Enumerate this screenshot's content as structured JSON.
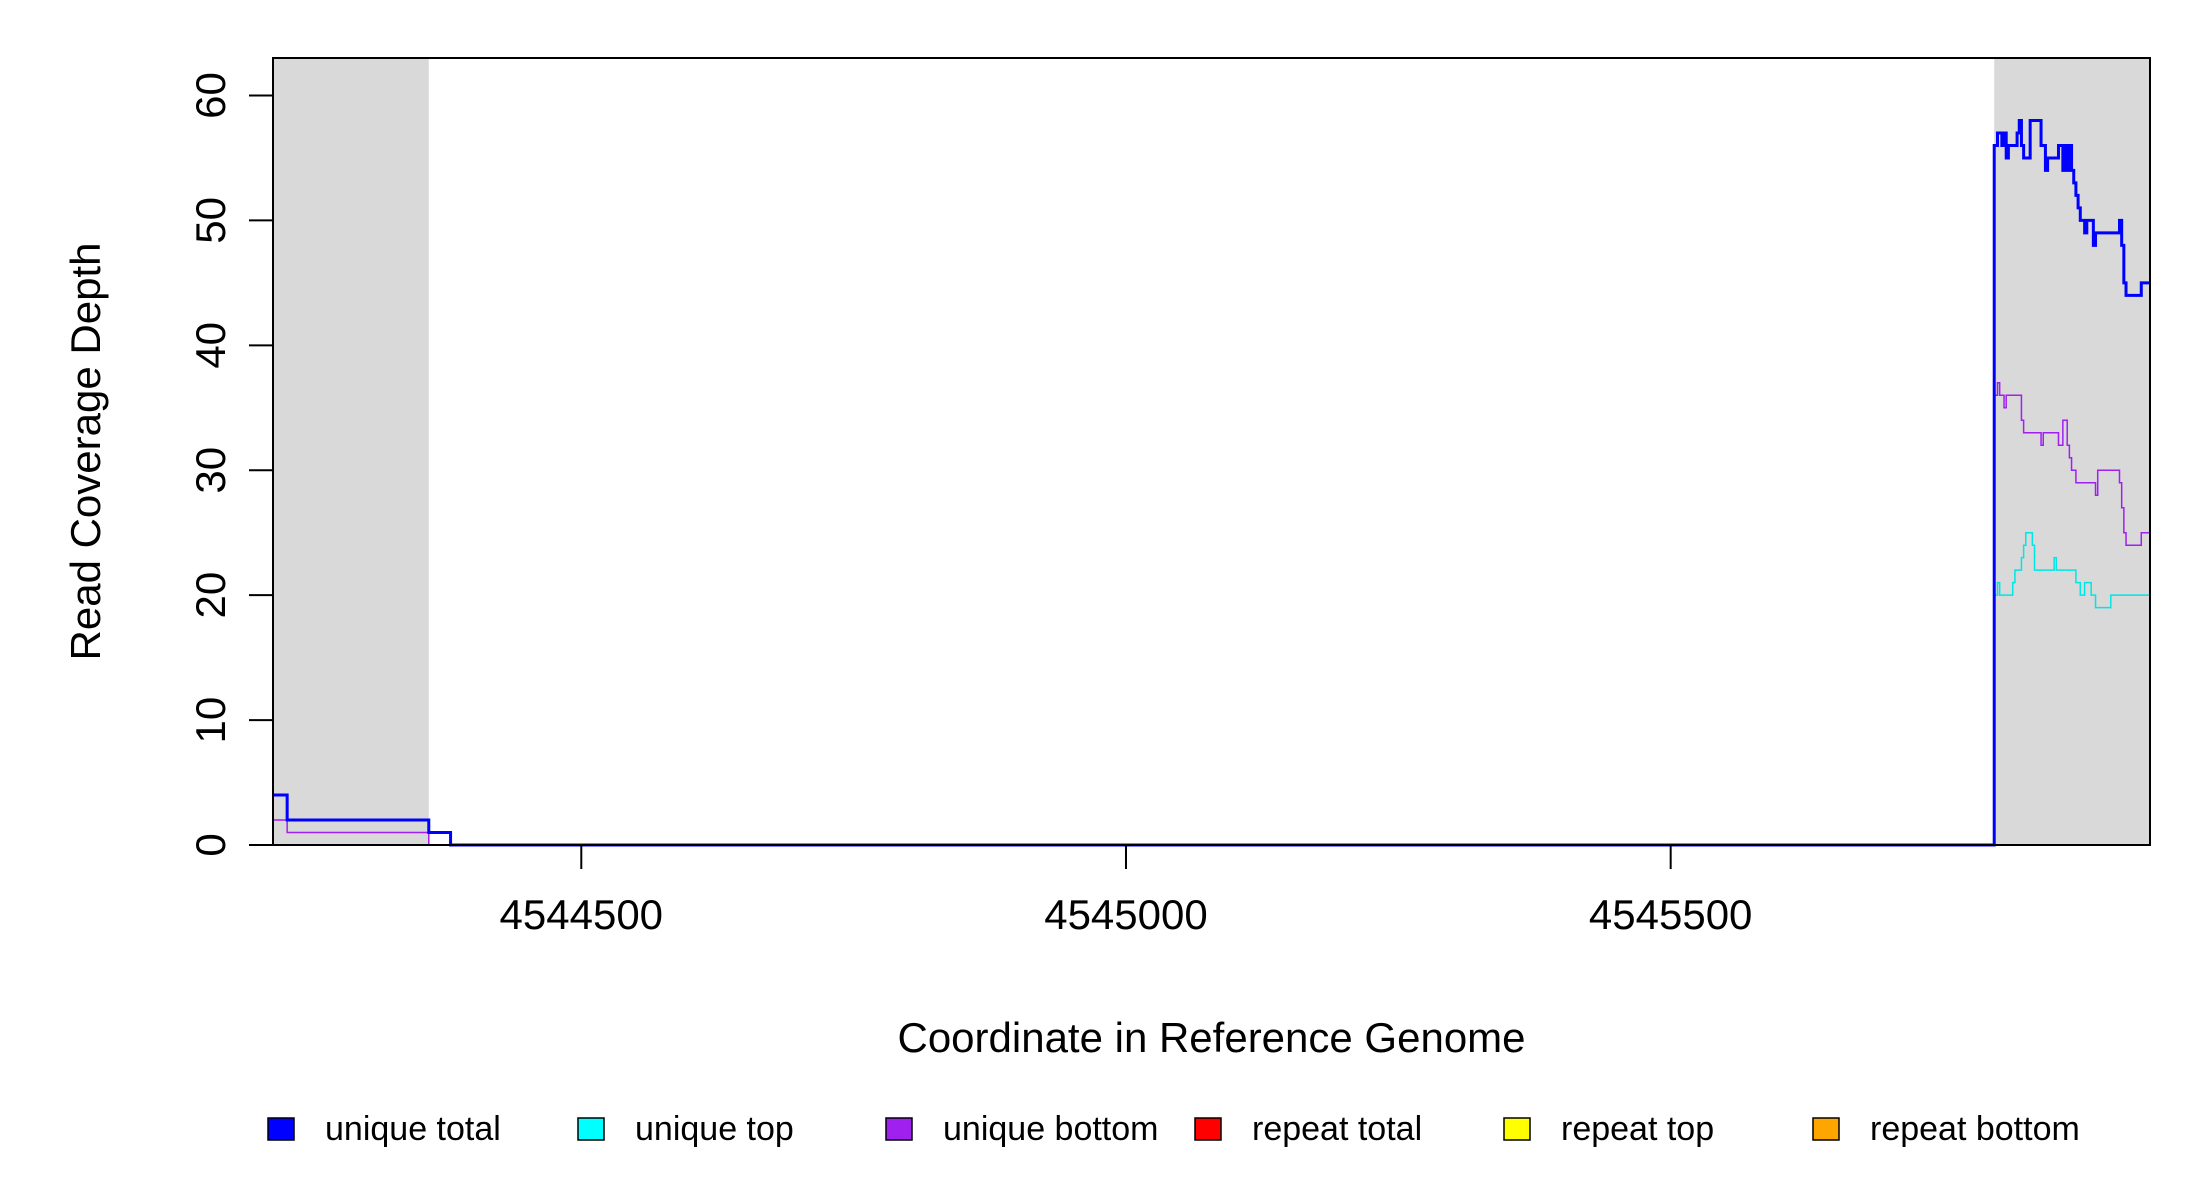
{
  "chart_data": {
    "type": "line",
    "title": "",
    "xlabel": "Coordinate in Reference Genome",
    "ylabel": "Read Coverage Depth",
    "xlim": [
      4544217,
      4545940
    ],
    "ylim": [
      0,
      63
    ],
    "x_ticks": [
      4544500,
      4545000,
      4545500
    ],
    "x_tick_labels": [
      "4544500",
      "4545000",
      "4545500"
    ],
    "y_ticks": [
      0,
      10,
      20,
      30,
      40,
      50,
      60
    ],
    "y_tick_labels": [
      "0",
      "10",
      "20",
      "30",
      "40",
      "50",
      "60"
    ],
    "grid": false,
    "shaded_regions": [
      {
        "x_start": 4544217,
        "x_end": 4544360,
        "color": "#d9d9d9"
      },
      {
        "x_start": 4545797,
        "x_end": 4545940,
        "color": "#d9d9d9"
      }
    ],
    "legend_position": "bottom",
    "series": [
      {
        "name": "unique total",
        "color": "#0000ff",
        "line_width": 3,
        "points": [
          [
            4544217,
            4
          ],
          [
            4544230,
            4
          ],
          [
            4544230,
            2
          ],
          [
            4544360,
            2
          ],
          [
            4544360,
            1
          ],
          [
            4544380,
            1
          ],
          [
            4544380,
            0
          ],
          [
            4545797,
            0
          ],
          [
            4545797,
            56
          ],
          [
            4545800,
            56
          ],
          [
            4545800,
            57
          ],
          [
            4545804,
            57
          ],
          [
            4545804,
            56
          ],
          [
            4545806,
            56
          ],
          [
            4545806,
            57
          ],
          [
            4545808,
            57
          ],
          [
            4545808,
            55
          ],
          [
            4545810,
            55
          ],
          [
            4545810,
            56
          ],
          [
            4545818,
            56
          ],
          [
            4545818,
            57
          ],
          [
            4545820,
            57
          ],
          [
            4545820,
            58
          ],
          [
            4545822,
            58
          ],
          [
            4545822,
            56
          ],
          [
            4545824,
            56
          ],
          [
            4545824,
            55
          ],
          [
            4545830,
            55
          ],
          [
            4545830,
            58
          ],
          [
            4545840,
            58
          ],
          [
            4545840,
            56
          ],
          [
            4545844,
            56
          ],
          [
            4545844,
            54
          ],
          [
            4545846,
            54
          ],
          [
            4545846,
            55
          ],
          [
            4545856,
            55
          ],
          [
            4545856,
            56
          ],
          [
            4545860,
            56
          ],
          [
            4545860,
            54
          ],
          [
            4545862,
            54
          ],
          [
            4545862,
            56
          ],
          [
            4545864,
            56
          ],
          [
            4545864,
            54
          ],
          [
            4545866,
            54
          ],
          [
            4545866,
            56
          ],
          [
            4545868,
            56
          ],
          [
            4545868,
            54
          ],
          [
            4545870,
            54
          ],
          [
            4545870,
            53
          ],
          [
            4545872,
            53
          ],
          [
            4545872,
            52
          ],
          [
            4545874,
            52
          ],
          [
            4545874,
            51
          ],
          [
            4545876,
            51
          ],
          [
            4545876,
            50
          ],
          [
            4545880,
            50
          ],
          [
            4545880,
            49
          ],
          [
            4545882,
            49
          ],
          [
            4545882,
            50
          ],
          [
            4545888,
            50
          ],
          [
            4545888,
            48
          ],
          [
            4545890,
            48
          ],
          [
            4545890,
            49
          ],
          [
            4545912,
            49
          ],
          [
            4545912,
            50
          ],
          [
            4545914,
            50
          ],
          [
            4545914,
            48
          ],
          [
            4545916,
            48
          ],
          [
            4545916,
            45
          ],
          [
            4545918,
            45
          ],
          [
            4545918,
            44
          ],
          [
            4545932,
            44
          ],
          [
            4545932,
            45
          ],
          [
            4545940,
            45
          ]
        ]
      },
      {
        "name": "unique top",
        "color": "#00e5e5",
        "line_width": 1.5,
        "points": [
          [
            4544217,
            0
          ],
          [
            4545797,
            0
          ],
          [
            4545797,
            20
          ],
          [
            4545800,
            20
          ],
          [
            4545800,
            21
          ],
          [
            4545802,
            21
          ],
          [
            4545802,
            20
          ],
          [
            4545814,
            20
          ],
          [
            4545814,
            21
          ],
          [
            4545816,
            21
          ],
          [
            4545816,
            22
          ],
          [
            4545822,
            22
          ],
          [
            4545822,
            23
          ],
          [
            4545824,
            23
          ],
          [
            4545824,
            24
          ],
          [
            4545826,
            24
          ],
          [
            4545826,
            25
          ],
          [
            4545832,
            25
          ],
          [
            4545832,
            24
          ],
          [
            4545834,
            24
          ],
          [
            4545834,
            22
          ],
          [
            4545852,
            22
          ],
          [
            4545852,
            23
          ],
          [
            4545854,
            23
          ],
          [
            4545854,
            22
          ],
          [
            4545872,
            22
          ],
          [
            4545872,
            21
          ],
          [
            4545876,
            21
          ],
          [
            4545876,
            20
          ],
          [
            4545880,
            20
          ],
          [
            4545880,
            21
          ],
          [
            4545886,
            21
          ],
          [
            4545886,
            20
          ],
          [
            4545890,
            20
          ],
          [
            4545890,
            19
          ],
          [
            4545904,
            19
          ],
          [
            4545904,
            20
          ],
          [
            4545940,
            20
          ]
        ]
      },
      {
        "name": "unique bottom",
        "color": "#a020f0",
        "line_width": 1.5,
        "points": [
          [
            4544217,
            2
          ],
          [
            4544230,
            2
          ],
          [
            4544230,
            1
          ],
          [
            4544360,
            1
          ],
          [
            4544360,
            0
          ],
          [
            4545797,
            0
          ],
          [
            4545797,
            36
          ],
          [
            4545800,
            36
          ],
          [
            4545800,
            37
          ],
          [
            4545802,
            37
          ],
          [
            4545802,
            36
          ],
          [
            4545806,
            36
          ],
          [
            4545806,
            35
          ],
          [
            4545808,
            35
          ],
          [
            4545808,
            36
          ],
          [
            4545822,
            36
          ],
          [
            4545822,
            34
          ],
          [
            4545824,
            34
          ],
          [
            4545824,
            33
          ],
          [
            4545840,
            33
          ],
          [
            4545840,
            32
          ],
          [
            4545842,
            32
          ],
          [
            4545842,
            33
          ],
          [
            4545856,
            33
          ],
          [
            4545856,
            32
          ],
          [
            4545860,
            32
          ],
          [
            4545860,
            34
          ],
          [
            4545864,
            34
          ],
          [
            4545864,
            32
          ],
          [
            4545866,
            32
          ],
          [
            4545866,
            31
          ],
          [
            4545868,
            31
          ],
          [
            4545868,
            30
          ],
          [
            4545872,
            30
          ],
          [
            4545872,
            29
          ],
          [
            4545890,
            29
          ],
          [
            4545890,
            28
          ],
          [
            4545892,
            28
          ],
          [
            4545892,
            30
          ],
          [
            4545912,
            30
          ],
          [
            4545912,
            29
          ],
          [
            4545914,
            29
          ],
          [
            4545914,
            27
          ],
          [
            4545916,
            27
          ],
          [
            4545916,
            25
          ],
          [
            4545918,
            25
          ],
          [
            4545918,
            24
          ],
          [
            4545932,
            24
          ],
          [
            4545932,
            25
          ],
          [
            4545940,
            25
          ]
        ]
      },
      {
        "name": "repeat total",
        "color": "#ff0000",
        "line_width": 1.5,
        "points": [
          [
            4544217,
            0
          ],
          [
            4545940,
            0
          ]
        ]
      },
      {
        "name": "repeat top",
        "color": "#ffff00",
        "line_width": 1.5,
        "points": [
          [
            4544217,
            0
          ],
          [
            4545940,
            0
          ]
        ]
      },
      {
        "name": "repeat bottom",
        "color": "#ffa500",
        "line_width": 2,
        "points": [
          [
            4544217,
            0
          ],
          [
            4545940,
            0
          ]
        ]
      }
    ],
    "legend": [
      {
        "label": "unique total",
        "color": "#0000ff"
      },
      {
        "label": "unique top",
        "color": "#00ffff"
      },
      {
        "label": "unique bottom",
        "color": "#a020f0"
      },
      {
        "label": "repeat total",
        "color": "#ff0000"
      },
      {
        "label": "repeat top",
        "color": "#ffff00"
      },
      {
        "label": "repeat bottom",
        "color": "#ffa500"
      }
    ]
  }
}
